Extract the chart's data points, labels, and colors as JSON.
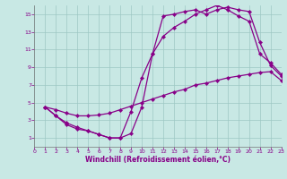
{
  "xlabel": "Windchill (Refroidissement éolien,°C)",
  "background_color": "#c8e8e4",
  "grid_color": "#9dc8c4",
  "line_color": "#880088",
  "xlim": [
    0,
    23
  ],
  "ylim": [
    0,
    16
  ],
  "xticks": [
    0,
    1,
    2,
    3,
    4,
    5,
    6,
    7,
    8,
    9,
    10,
    11,
    12,
    13,
    14,
    15,
    16,
    17,
    18,
    19,
    20,
    21,
    22,
    23
  ],
  "yticks": [
    1,
    3,
    5,
    7,
    9,
    11,
    13,
    15
  ],
  "curve1_x": [
    1,
    2,
    3,
    4,
    5,
    6,
    7,
    8,
    9,
    10,
    11,
    12,
    13,
    14,
    15,
    16,
    17,
    18,
    19,
    20,
    21,
    22,
    23
  ],
  "curve1_y": [
    4.5,
    3.5,
    2.7,
    2.2,
    1.8,
    1.4,
    1.0,
    1.0,
    1.5,
    4.5,
    10.5,
    14.8,
    15.0,
    15.3,
    15.5,
    15.0,
    15.5,
    15.8,
    15.5,
    15.3,
    11.8,
    9.2,
    8.0
  ],
  "curve2_x": [
    1,
    2,
    3,
    4,
    5,
    6,
    7,
    8,
    9,
    10,
    11,
    12,
    13,
    14,
    15,
    16,
    17,
    18,
    19,
    20,
    21,
    22,
    23
  ],
  "curve2_y": [
    4.5,
    3.5,
    2.5,
    2.0,
    1.8,
    1.4,
    1.0,
    1.0,
    4.0,
    7.8,
    10.5,
    12.5,
    13.5,
    14.2,
    15.0,
    15.5,
    16.0,
    15.5,
    14.8,
    14.2,
    10.5,
    9.5,
    8.2
  ],
  "curve3_x": [
    1,
    2,
    3,
    4,
    5,
    6,
    7,
    8,
    9,
    10,
    11,
    12,
    13,
    14,
    15,
    16,
    17,
    18,
    19,
    20,
    21,
    22,
    23
  ],
  "curve3_y": [
    4.5,
    4.2,
    3.8,
    3.5,
    3.5,
    3.6,
    3.8,
    4.2,
    4.6,
    5.0,
    5.4,
    5.8,
    6.2,
    6.5,
    7.0,
    7.2,
    7.5,
    7.8,
    8.0,
    8.2,
    8.4,
    8.5,
    7.5
  ]
}
